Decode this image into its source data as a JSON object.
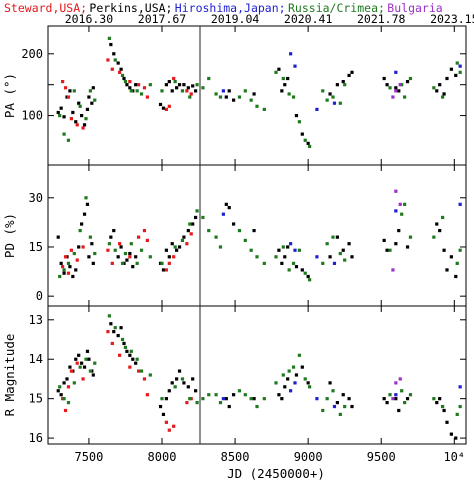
{
  "chart_data": {
    "type": "scatter",
    "legend": [
      {
        "name": "Steward,USA;",
        "color": "#e41a1c"
      },
      {
        "name": "Perkins,USA;",
        "color": "#000000"
      },
      {
        "name": "Hiroshima,Japan;",
        "color": "#1f1fd0"
      },
      {
        "name": "Russia/Crimea;",
        "color": "#1f7a1f"
      },
      {
        "name": "Bulgaria",
        "color": "#9b30c8"
      }
    ],
    "top_axis_labels": [
      "2016.30",
      "2017.67",
      "2019.04",
      "2020.41",
      "2021.78",
      "2023.15"
    ],
    "top_axis_positions": [
      7500,
      8000,
      8500,
      9000,
      9500,
      10000
    ],
    "xlabel": "JD (2450000+)",
    "xlim": [
      7220,
      10080
    ],
    "x_ticks": [
      7500,
      8000,
      8500,
      9000,
      9500,
      10000
    ],
    "x_tick_labels": [
      "7500",
      "8000",
      "8500",
      "9000",
      "9500",
      "10⁴"
    ],
    "vertical_line_x": 8260,
    "panels": [
      {
        "ylabel": "PA (°)",
        "ylim": [
          20,
          245
        ],
        "ticks": [
          100,
          150,
          200
        ],
        "tick_labels": [
          "100",
          "",
          "200"
        ],
        "inverted": false
      },
      {
        "ylabel": "PD (%)",
        "ylim": [
          -3,
          40
        ],
        "ticks": [
          0,
          15,
          30
        ],
        "tick_labels": [
          "0",
          "15",
          "30"
        ],
        "inverted": false
      },
      {
        "ylabel": "R Magnitude",
        "ylim": [
          16.15,
          12.65
        ],
        "ticks": [
          13,
          14,
          15,
          16
        ],
        "tick_labels": [
          "13",
          "14",
          "15",
          "16"
        ],
        "inverted": true
      }
    ],
    "series": [
      {
        "name": "Perkins,USA;",
        "points": [
          [
            7290,
            105,
            18,
            14.8
          ],
          [
            7310,
            112,
            10,
            14.9
          ],
          [
            7330,
            98,
            7,
            14.6
          ],
          [
            7350,
            130,
            12,
            14.5
          ],
          [
            7370,
            140,
            9,
            14.2
          ],
          [
            7390,
            105,
            6,
            14.3
          ],
          [
            7410,
            90,
            8,
            14.0
          ],
          [
            7430,
            120,
            15,
            13.9
          ],
          [
            7450,
            100,
            22,
            14.1
          ],
          [
            7470,
            85,
            25,
            14.2
          ],
          [
            7490,
            110,
            28,
            13.8
          ],
          [
            7500,
            130,
            12,
            14.0
          ],
          [
            7520,
            120,
            16,
            14.3
          ],
          [
            7530,
            145,
            10,
            14.4
          ],
          [
            7650,
            215,
            18,
            13.1
          ],
          [
            7670,
            200,
            20,
            13.3
          ],
          [
            7700,
            185,
            12,
            13.4
          ],
          [
            7720,
            175,
            15,
            13.2
          ],
          [
            7740,
            160,
            10,
            13.6
          ],
          [
            7760,
            150,
            11,
            13.8
          ],
          [
            7780,
            145,
            13,
            13.9
          ],
          [
            7800,
            140,
            9,
            14.0
          ],
          [
            7820,
            150,
            12,
            14.1
          ],
          [
            7990,
            118,
            10,
            15.2
          ],
          [
            8010,
            112,
            8,
            15.4
          ],
          [
            8030,
            150,
            14,
            15.0
          ],
          [
            8050,
            155,
            12,
            14.8
          ],
          [
            8070,
            140,
            16,
            14.6
          ],
          [
            8100,
            145,
            14,
            14.5
          ],
          [
            8120,
            150,
            15,
            14.3
          ],
          [
            8150,
            150,
            18,
            14.6
          ],
          [
            8180,
            145,
            20,
            14.7
          ],
          [
            8210,
            148,
            22,
            14.5
          ],
          [
            8230,
            140,
            24,
            14.8
          ],
          [
            8440,
            130,
            28,
            15.0
          ],
          [
            8460,
            140,
            27,
            15.2
          ],
          [
            8490,
            125,
            22,
            14.9
          ],
          [
            8630,
            135,
            20,
            15.0
          ],
          [
            8800,
            175,
            14,
            14.9
          ],
          [
            8820,
            140,
            10,
            15.0
          ],
          [
            8840,
            150,
            12,
            14.7
          ],
          [
            8860,
            160,
            15,
            14.5
          ],
          [
            8920,
            100,
            9,
            14.4
          ],
          [
            8960,
            70,
            8,
            14.2
          ],
          [
            9000,
            55,
            6,
            14.6
          ],
          [
            9150,
            135,
            12,
            14.6
          ],
          [
            9200,
            150,
            18,
            15.1
          ],
          [
            9240,
            155,
            14,
            14.9
          ],
          [
            9280,
            165,
            16,
            15.0
          ],
          [
            9300,
            170,
            12,
            15.2
          ],
          [
            9520,
            160,
            17,
            15.0
          ],
          [
            9540,
            150,
            14,
            15.1
          ],
          [
            9600,
            145,
            16,
            15.0
          ],
          [
            9620,
            140,
            20,
            15.3
          ],
          [
            9680,
            155,
            15,
            15.0
          ],
          [
            9880,
            140,
            22,
            15.1
          ],
          [
            9900,
            150,
            20,
            15.0
          ],
          [
            9930,
            135,
            14,
            15.3
          ],
          [
            9950,
            160,
            8,
            15.6
          ],
          [
            9980,
            175,
            12,
            15.9
          ],
          [
            10010,
            165,
            6,
            16.0
          ]
        ]
      },
      {
        "name": "Steward,USA;",
        "points": [
          [
            7320,
            155,
            9,
            15.0
          ],
          [
            7340,
            145,
            12,
            15.3
          ],
          [
            7360,
            130,
            7,
            14.7
          ],
          [
            7380,
            95,
            14,
            14.3
          ],
          [
            7420,
            85,
            11,
            14.1
          ],
          [
            7460,
            80,
            15,
            14.5
          ],
          [
            7630,
            190,
            14,
            13.3
          ],
          [
            7660,
            175,
            10,
            13.6
          ],
          [
            7710,
            170,
            16,
            13.9
          ],
          [
            7780,
            155,
            12,
            14.2
          ],
          [
            7840,
            150,
            18,
            14.3
          ],
          [
            7880,
            145,
            20,
            14.5
          ],
          [
            7900,
            130,
            17,
            14.9
          ],
          [
            8030,
            110,
            8,
            15.6
          ],
          [
            8050,
            115,
            10,
            15.8
          ],
          [
            8080,
            160,
            12,
            15.7
          ],
          [
            8170,
            140,
            16,
            15.1
          ],
          [
            8200,
            135,
            19,
            15.0
          ]
        ]
      },
      {
        "name": "Russia/Crimea;",
        "points": [
          [
            7300,
            100,
            6,
            14.7
          ],
          [
            7330,
            70,
            8,
            15.0
          ],
          [
            7360,
            60,
            10,
            15.1
          ],
          [
            7400,
            140,
            13,
            14.6
          ],
          [
            7440,
            115,
            20,
            14.2
          ],
          [
            7480,
            95,
            30,
            14.0
          ],
          [
            7510,
            140,
            18,
            14.3
          ],
          [
            7540,
            125,
            13,
            14.1
          ],
          [
            7640,
            225,
            16,
            12.9
          ],
          [
            7680,
            190,
            14,
            13.2
          ],
          [
            7730,
            165,
            10,
            13.5
          ],
          [
            7750,
            155,
            13,
            13.7
          ],
          [
            7790,
            140,
            16,
            13.8
          ],
          [
            7830,
            140,
            10,
            14.0
          ],
          [
            7860,
            135,
            14,
            14.3
          ],
          [
            7920,
            150,
            12,
            14.4
          ],
          [
            8000,
            140,
            10,
            15.0
          ],
          [
            8090,
            155,
            15,
            14.7
          ],
          [
            8140,
            140,
            17,
            14.5
          ],
          [
            8190,
            130,
            22,
            15.0
          ],
          [
            8240,
            150,
            26,
            15.1
          ],
          [
            8280,
            145,
            24,
            15.0
          ],
          [
            8320,
            160,
            20,
            14.9
          ],
          [
            8370,
            135,
            18,
            14.9
          ],
          [
            8400,
            130,
            15,
            15.1
          ],
          [
            8530,
            130,
            20,
            14.8
          ],
          [
            8570,
            140,
            17,
            14.9
          ],
          [
            8610,
            125,
            14,
            15.0
          ],
          [
            8650,
            115,
            12,
            15.2
          ],
          [
            8700,
            110,
            10,
            15.0
          ],
          [
            8780,
            170,
            12,
            14.6
          ],
          [
            8830,
            160,
            15,
            14.4
          ],
          [
            8870,
            135,
            8,
            14.3
          ],
          [
            8900,
            130,
            10,
            14.2
          ],
          [
            8940,
            90,
            14,
            13.9
          ],
          [
            8980,
            60,
            7,
            14.5
          ],
          [
            9010,
            50,
            5,
            14.7
          ],
          [
            9100,
            140,
            10,
            15.3
          ],
          [
            9130,
            125,
            16,
            15.0
          ],
          [
            9170,
            130,
            18,
            14.8
          ],
          [
            9220,
            120,
            13,
            15.4
          ],
          [
            9250,
            150,
            11,
            15.2
          ],
          [
            9560,
            145,
            14,
            14.9
          ],
          [
            9640,
            150,
            25,
            14.8
          ],
          [
            9660,
            130,
            28,
            15.1
          ],
          [
            9700,
            160,
            18,
            14.9
          ],
          [
            9860,
            145,
            18,
            15.0
          ],
          [
            9920,
            130,
            24,
            15.2
          ],
          [
            10020,
            185,
            10,
            15.4
          ],
          [
            10040,
            170,
            14,
            15.2
          ]
        ]
      },
      {
        "name": "Hiroshima,Japan;",
        "points": [
          [
            8420,
            140,
            25,
            15.0
          ],
          [
            8880,
            200,
            16,
            14.8
          ],
          [
            8910,
            180,
            14,
            14.6
          ],
          [
            9060,
            110,
            12,
            15.0
          ],
          [
            9180,
            120,
            10,
            15.2
          ],
          [
            9600,
            170,
            26,
            14.9
          ],
          [
            10040,
            180,
            28,
            14.7
          ]
        ]
      },
      {
        "name": "Bulgaria",
        "points": [
          [
            9580,
            130,
            8,
            15.0
          ],
          [
            9600,
            140,
            32,
            14.6
          ],
          [
            9630,
            150,
            28,
            14.5
          ]
        ]
      }
    ]
  }
}
